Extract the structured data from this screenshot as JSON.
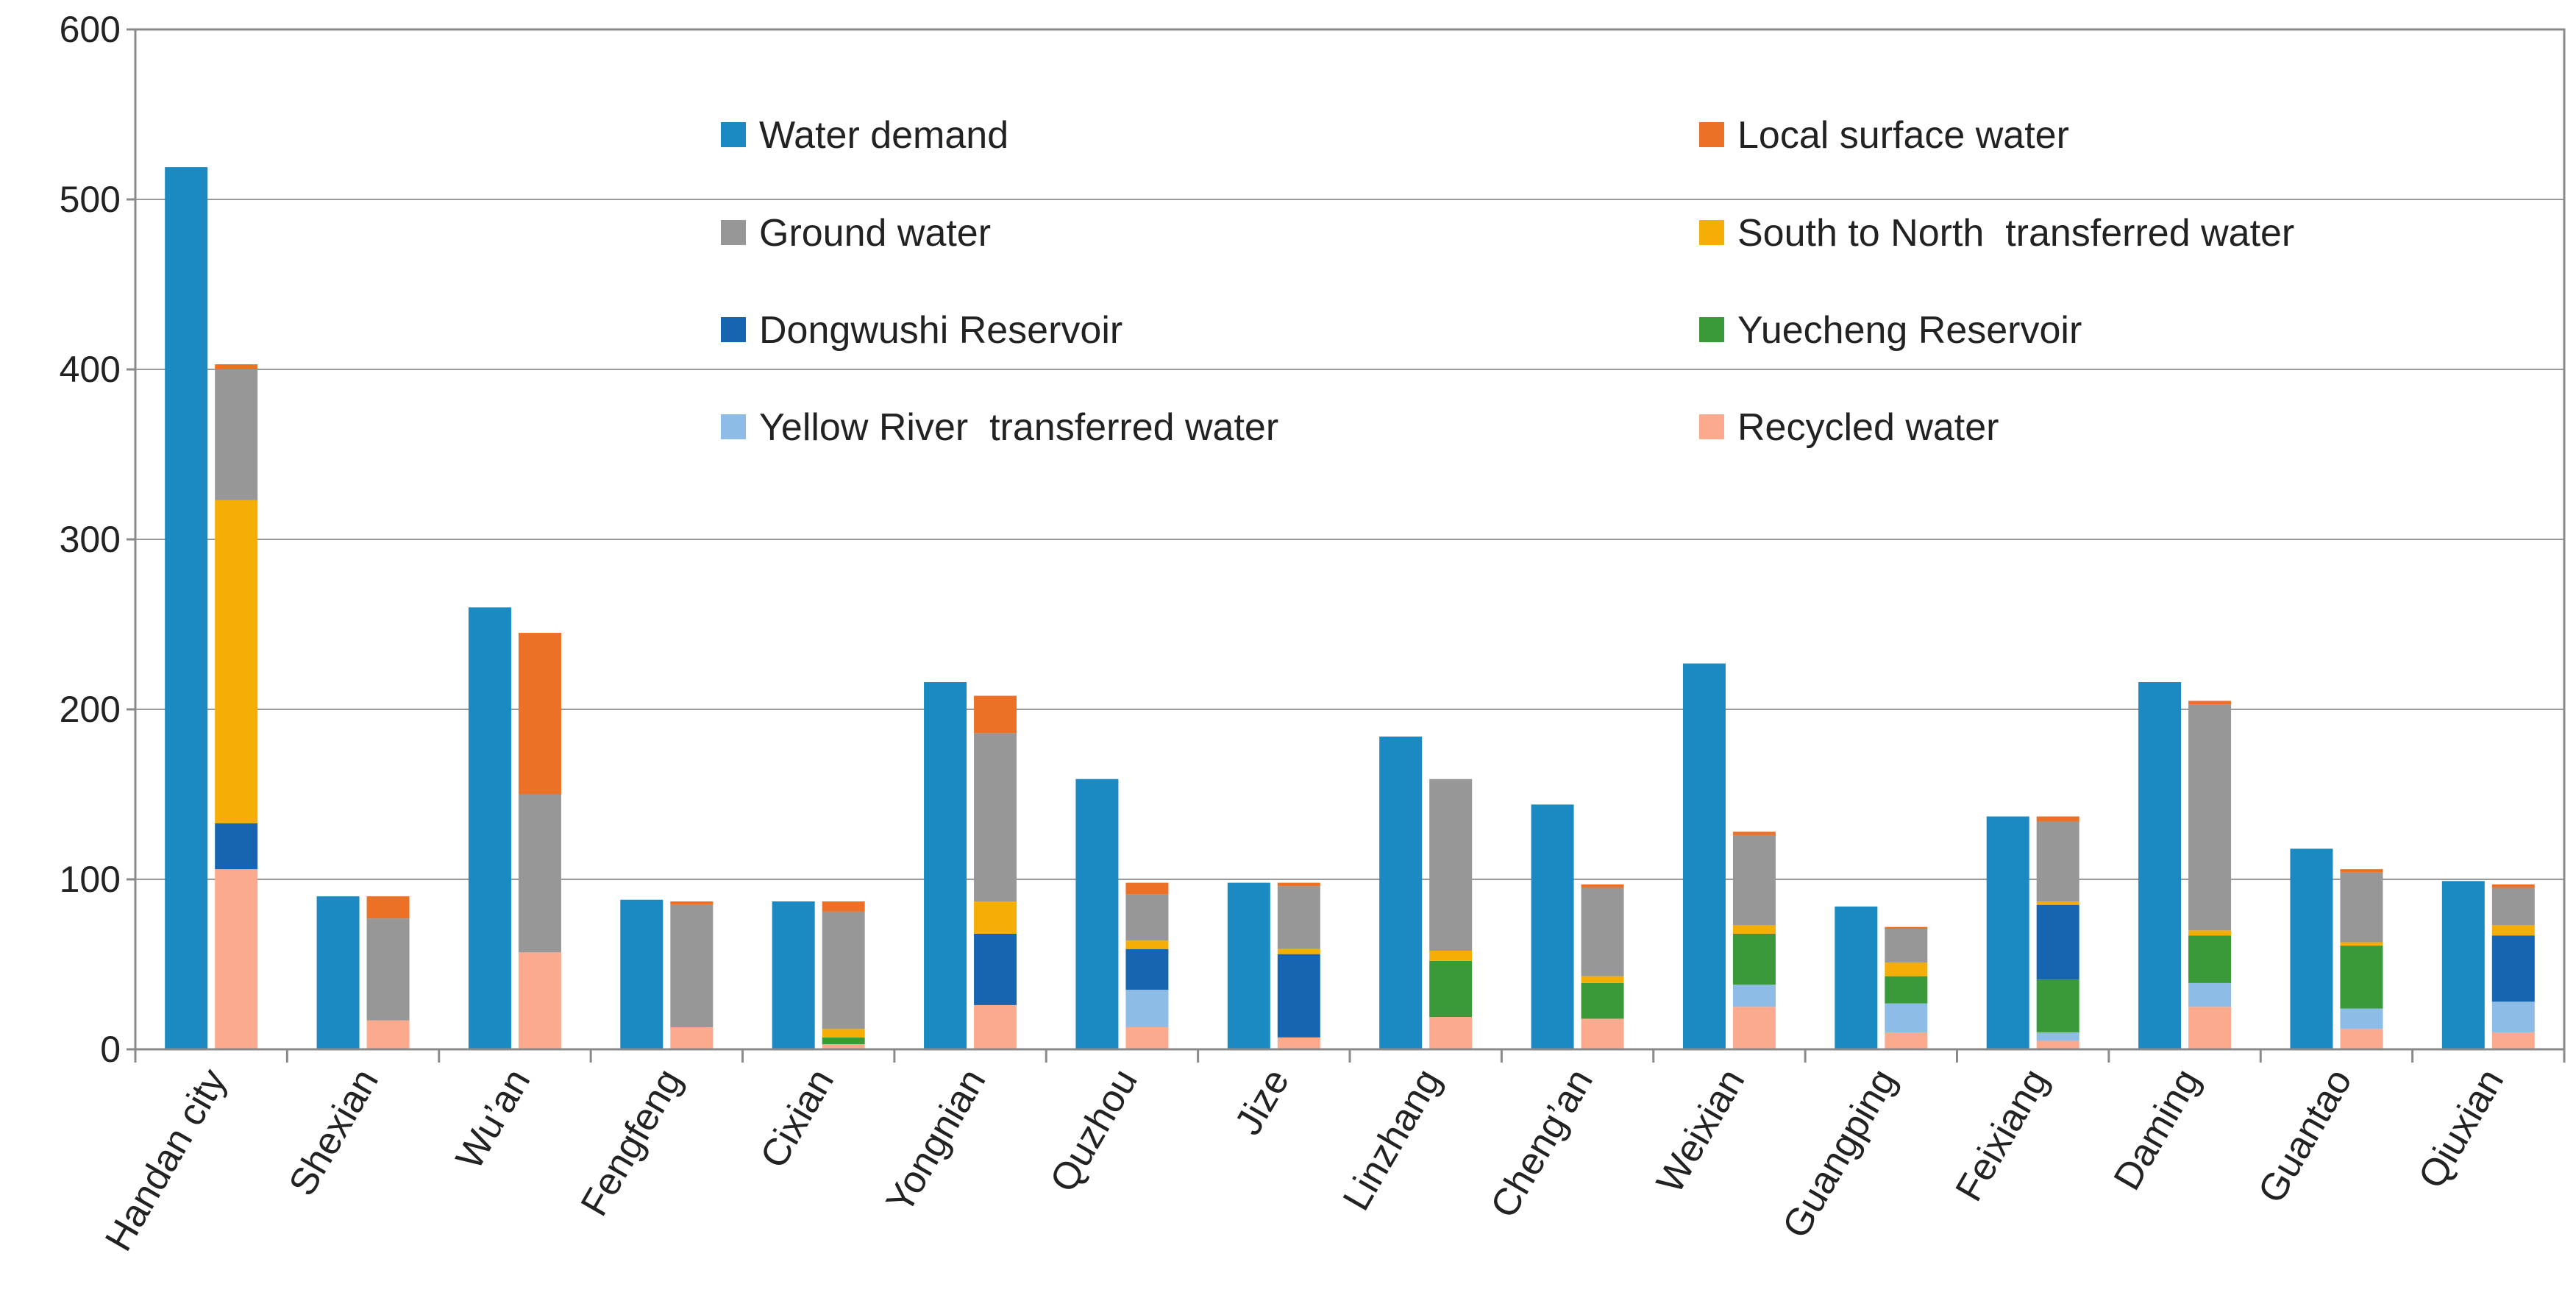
{
  "chart_data": {
    "type": "bar",
    "subtype": "grouped-stacked",
    "title": "",
    "xlabel": "",
    "ylabel": "",
    "ylim": [
      0,
      600
    ],
    "yticks": [
      0,
      100,
      200,
      300,
      400,
      500,
      600
    ],
    "grid": true,
    "legend_position": "top-inside",
    "categories": [
      "Handan city",
      "Shexian",
      "Wu’an",
      "Fengfeng",
      "Cixian",
      "Yongnian",
      "Quzhou",
      "Jize",
      "Linzhang",
      "Cheng’an",
      "Weixian",
      "Guangping",
      "Feixiang",
      "Daming",
      "Guantao",
      "Qiuxian"
    ],
    "demand": {
      "name": "Water demand",
      "color": "#1B8AC3",
      "values": [
        519,
        90,
        260,
        88,
        87,
        216,
        159,
        98,
        184,
        144,
        227,
        84,
        137,
        216,
        118,
        99
      ]
    },
    "supply_series": [
      {
        "name": "Recycled water",
        "color": "#FBAA8D",
        "values": [
          106,
          17,
          57,
          13,
          3,
          26,
          13,
          7,
          19,
          18,
          25,
          10,
          5,
          25,
          12,
          10
        ]
      },
      {
        "name": "Yellow River  transferred water",
        "color": "#8DBCE6",
        "values": [
          0,
          0,
          0,
          0,
          0,
          0,
          22,
          0,
          0,
          0,
          13,
          17,
          5,
          14,
          12,
          18
        ]
      },
      {
        "name": "Yuecheng Reservoir",
        "color": "#3A9A3A",
        "values": [
          0,
          0,
          0,
          0,
          4,
          0,
          0,
          0,
          33,
          21,
          30,
          16,
          31,
          28,
          37,
          0
        ]
      },
      {
        "name": "Dongwushi Reservoir",
        "color": "#1765B1",
        "values": [
          27,
          0,
          0,
          0,
          0,
          42,
          24,
          49,
          0,
          0,
          0,
          0,
          44,
          0,
          0,
          39
        ]
      },
      {
        "name": "South to North  transferred water",
        "color": "#F5AE05",
        "values": [
          190,
          0,
          0,
          0,
          5,
          19,
          5,
          3,
          6,
          4,
          5,
          8,
          2,
          3,
          2,
          6
        ]
      },
      {
        "name": "Ground water",
        "color": "#979797",
        "values": [
          77,
          60,
          93,
          72,
          69,
          99,
          27,
          37,
          101,
          52,
          53,
          20,
          47,
          133,
          41,
          22
        ]
      },
      {
        "name": "Local surface water",
        "color": "#EC7126",
        "values": [
          3,
          13,
          95,
          2,
          6,
          22,
          7,
          2,
          0,
          2,
          2,
          1,
          3,
          2,
          2,
          2
        ]
      }
    ],
    "legend": [
      "Water demand",
      "Local surface water",
      "Ground water",
      "South to North  transferred water",
      "Dongwushi Reservoir",
      "Yuecheng Reservoir",
      "Yellow River  transferred water",
      "Recycled water"
    ]
  }
}
